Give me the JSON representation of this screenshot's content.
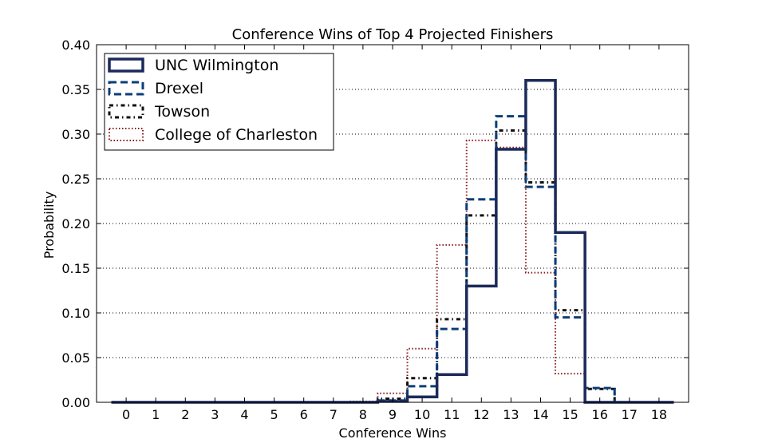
{
  "chart_data": {
    "type": "line",
    "step": true,
    "title": "Conference Wins of Top 4 Projected Finishers",
    "xlabel": "Conference Wins",
    "ylabel": "Probability",
    "xlim": [
      -1,
      19
    ],
    "ylim": [
      0,
      0.4
    ],
    "xticks": [
      "0",
      "1",
      "2",
      "3",
      "4",
      "5",
      "6",
      "7",
      "8",
      "9",
      "10",
      "11",
      "12",
      "13",
      "14",
      "15",
      "16",
      "17",
      "18"
    ],
    "yticks": [
      "0.00",
      "0.05",
      "0.10",
      "0.15",
      "0.20",
      "0.25",
      "0.30",
      "0.35",
      "0.40"
    ],
    "grid": "horizontal dotted",
    "legend_position": "upper-left",
    "x": [
      0,
      1,
      2,
      3,
      4,
      5,
      6,
      7,
      8,
      9,
      10,
      11,
      12,
      13,
      14,
      15,
      16,
      17,
      18
    ],
    "series": [
      {
        "name": "College of Charleston",
        "color": "#8b1a1a",
        "style": "dotted",
        "values": [
          0,
          0,
          0,
          0,
          0,
          0,
          0,
          0,
          0.001,
          0.01,
          0.06,
          0.176,
          0.293,
          0.285,
          0.145,
          0.032,
          0,
          0,
          0
        ]
      },
      {
        "name": "Towson",
        "color": "#111111",
        "style": "dashdot",
        "values": [
          0,
          0,
          0,
          0,
          0,
          0,
          0,
          0,
          0,
          0.004,
          0.027,
          0.093,
          0.209,
          0.304,
          0.246,
          0.103,
          0.015,
          0,
          0
        ]
      },
      {
        "name": "Drexel",
        "color": "#0b3d7a",
        "style": "dashed",
        "values": [
          0,
          0,
          0,
          0,
          0,
          0,
          0,
          0,
          0,
          0.002,
          0.018,
          0.082,
          0.227,
          0.32,
          0.241,
          0.095,
          0.016,
          0,
          0
        ]
      },
      {
        "name": "UNC Wilmington",
        "color": "#1b2a5a",
        "style": "solid",
        "values": [
          0,
          0,
          0,
          0,
          0,
          0,
          0,
          0,
          0,
          0.001,
          0.006,
          0.031,
          0.13,
          0.283,
          0.36,
          0.19,
          0,
          0,
          0
        ]
      }
    ],
    "legend_order": [
      "UNC Wilmington",
      "Drexel",
      "Towson",
      "College of Charleston"
    ]
  }
}
